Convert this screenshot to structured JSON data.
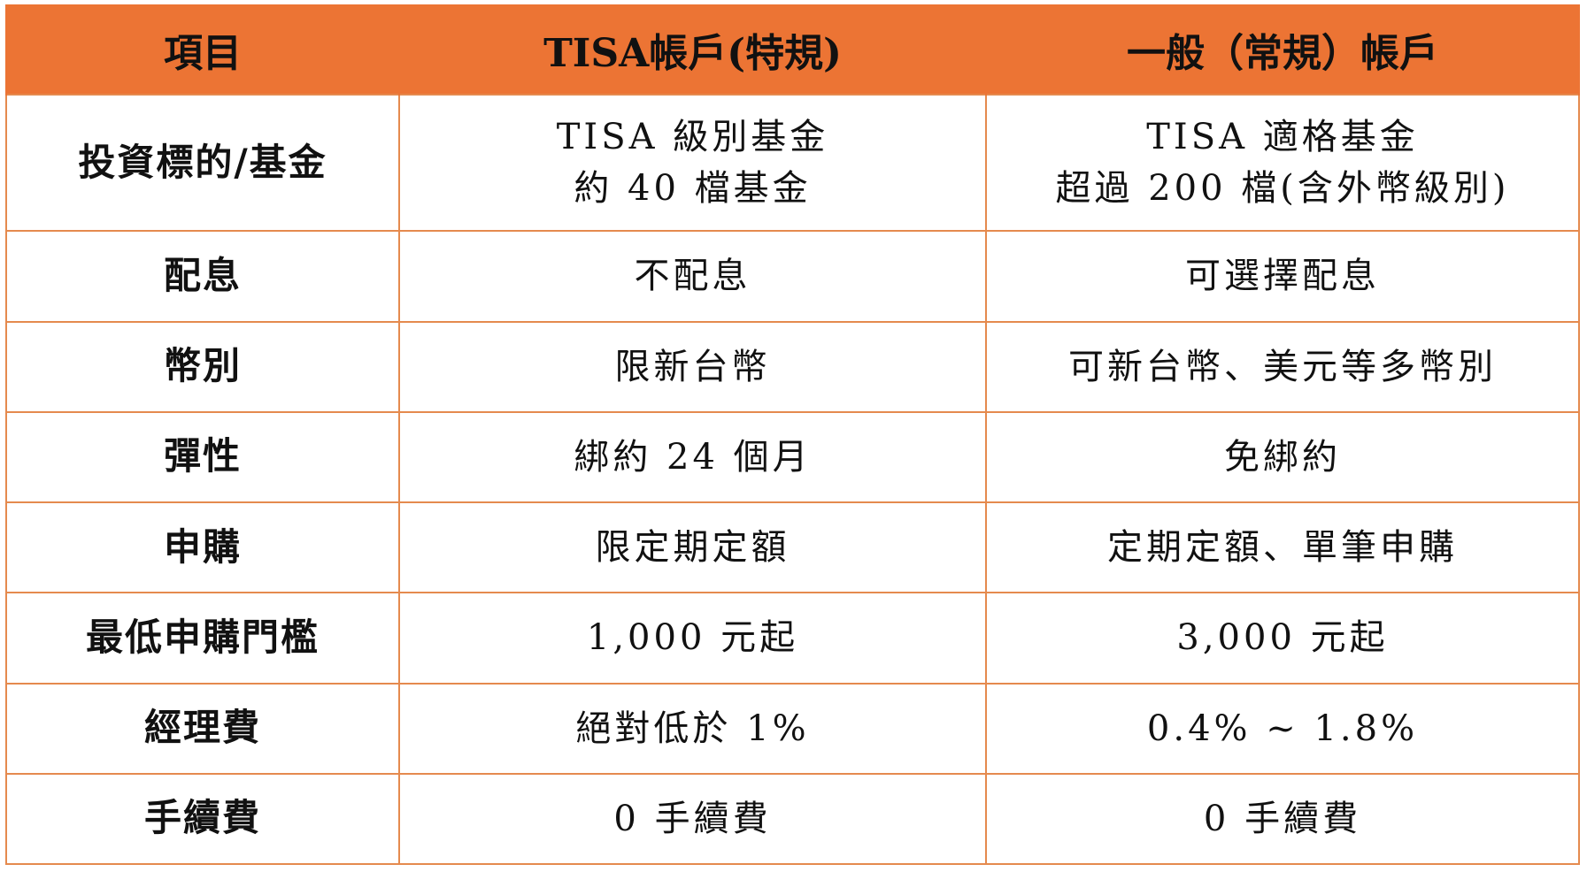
{
  "header": {
    "col1": "項目",
    "col2": "TISA帳戶(特規)",
    "col3": "一般（常規）帳戶"
  },
  "rows": [
    {
      "label": "投資標的/基金",
      "tisa_lines": [
        "TISA 級別基金",
        "約 40 檔基金"
      ],
      "general_lines": [
        "TISA 適格基金",
        "超過 200 檔(含外幣級別)"
      ]
    },
    {
      "label": "配息",
      "tisa": "不配息",
      "general": "可選擇配息"
    },
    {
      "label": "幣別",
      "tisa": "限新台幣",
      "general": "可新台幣、美元等多幣別"
    },
    {
      "label": "彈性",
      "tisa": "綁約 24 個月",
      "general": "免綁約"
    },
    {
      "label": "申購",
      "tisa": "限定期定額",
      "general": "定期定額、單筆申購"
    },
    {
      "label": "最低申購門檻",
      "tisa": "1,000 元起",
      "general": "3,000 元起"
    },
    {
      "label": "經理費",
      "tisa": "絕對低於 1%",
      "general": "0.4% ~ 1.8%"
    },
    {
      "label": "手續費",
      "tisa": "0 手續費",
      "general": "0 手續費"
    }
  ],
  "colors": {
    "header_bg": "#ec7434",
    "border": "#e58a4e",
    "text": "#111111"
  }
}
